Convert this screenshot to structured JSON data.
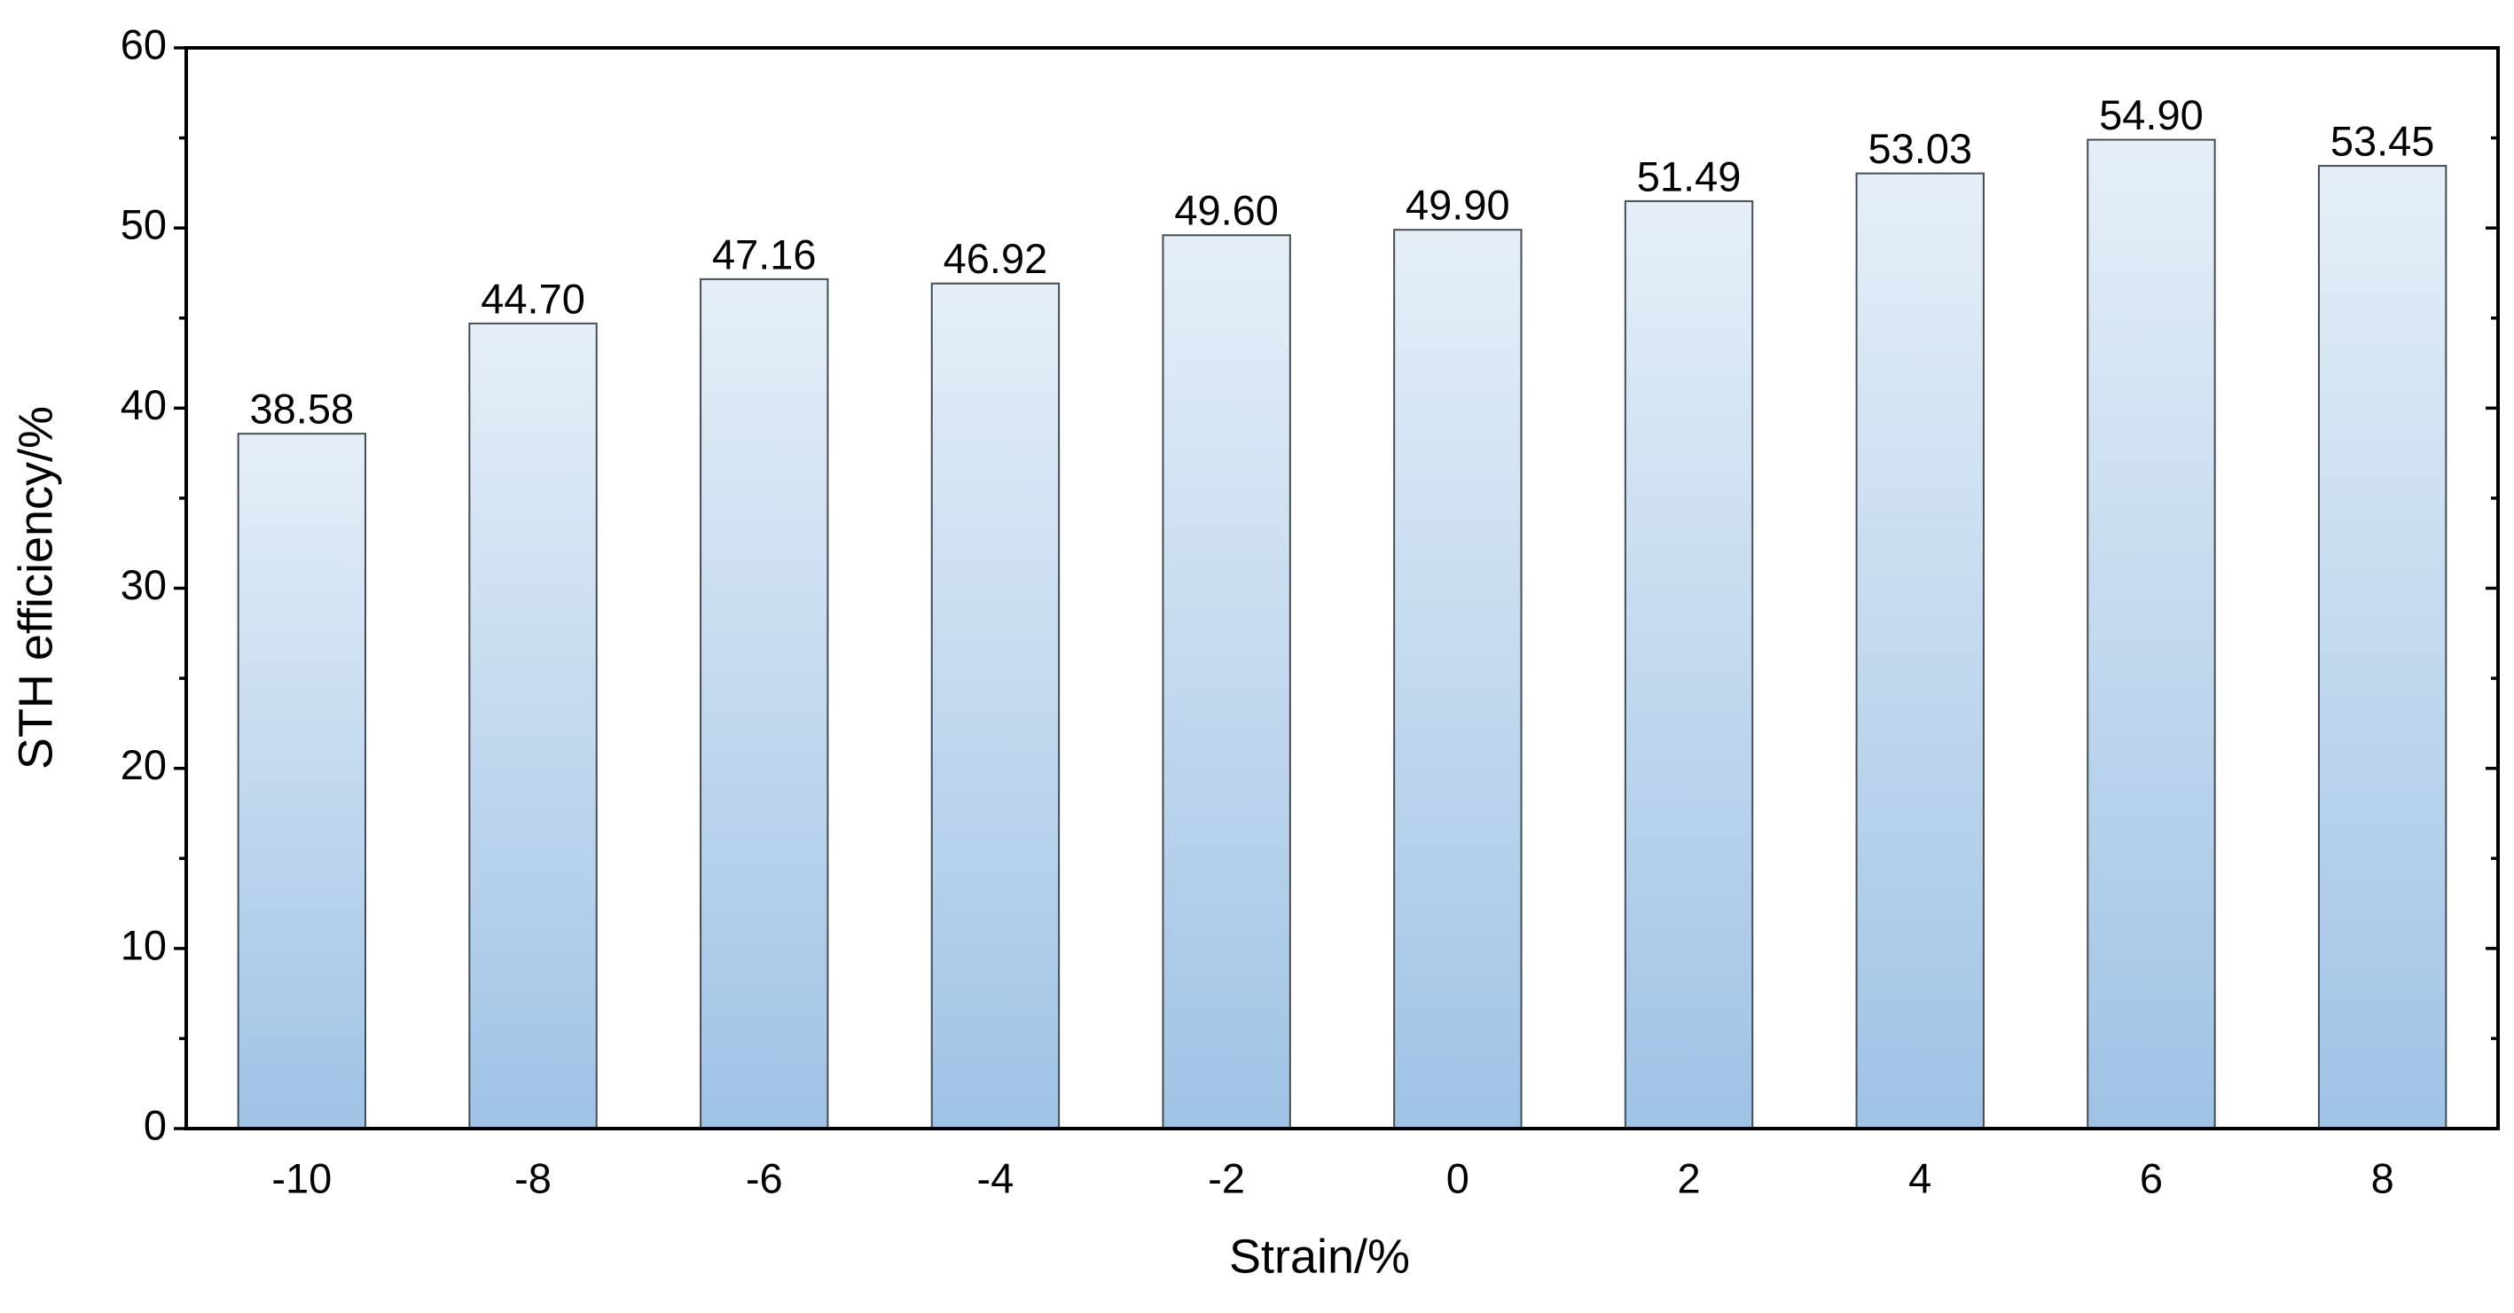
{
  "chart_data": {
    "type": "bar",
    "x_label": "Strain/%",
    "y_label": "STH efficiency/%",
    "categories": [
      "-10",
      "-8",
      "-6",
      "-4",
      "-2",
      "0",
      "2",
      "4",
      "6",
      "8"
    ],
    "values": [
      38.58,
      44.7,
      47.16,
      46.92,
      49.6,
      49.9,
      51.49,
      53.03,
      54.9,
      53.45
    ],
    "value_labels": [
      "38.58",
      "44.70",
      "47.16",
      "46.92",
      "49.60",
      "49.90",
      "51.49",
      "53.03",
      "54.90",
      "53.45"
    ],
    "color": "#9fc3e5",
    "ylim": [
      0,
      60
    ],
    "yticks": [
      0,
      10,
      20,
      30,
      40,
      50,
      60
    ],
    "grid": false
  }
}
